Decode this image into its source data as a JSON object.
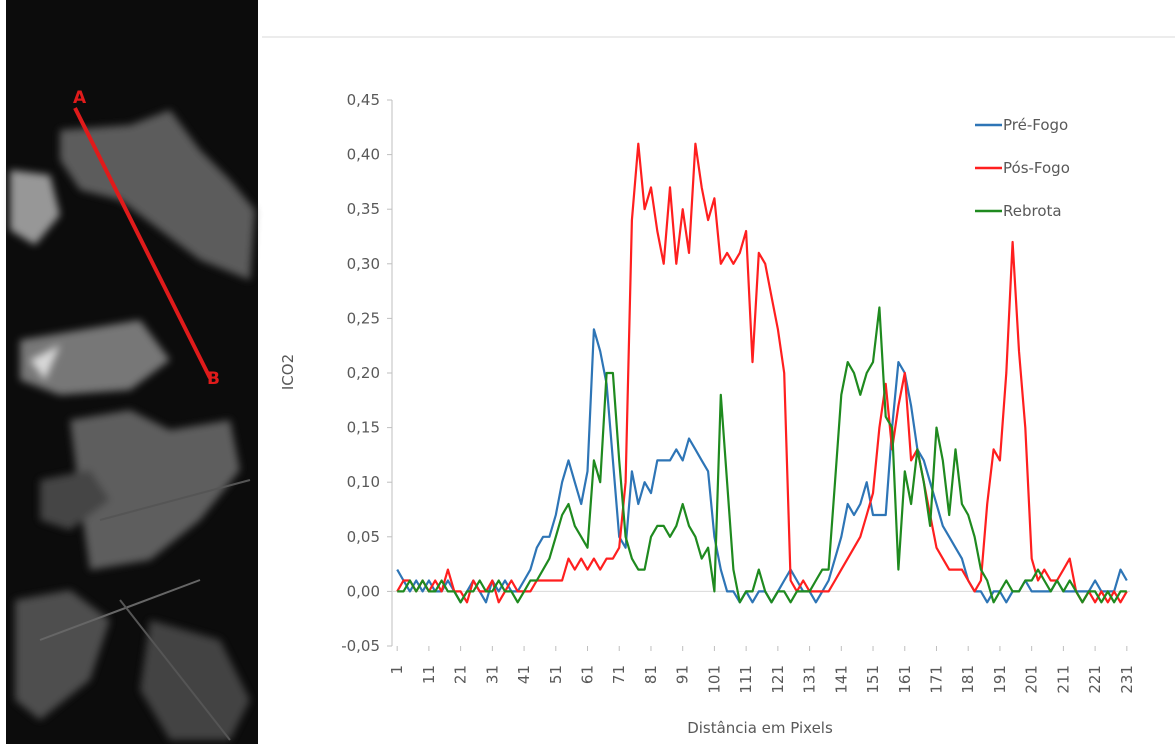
{
  "image": {
    "markers": [
      "A",
      "B"
    ]
  },
  "chart_data": {
    "type": "line",
    "x_label": "Distância em Pixels",
    "y_label": "ICO2",
    "x": [
      1,
      3,
      5,
      7,
      9,
      11,
      13,
      15,
      17,
      19,
      21,
      23,
      25,
      27,
      29,
      31,
      33,
      35,
      37,
      39,
      41,
      43,
      45,
      47,
      49,
      51,
      53,
      55,
      57,
      59,
      61,
      63,
      65,
      67,
      69,
      71,
      73,
      75,
      77,
      79,
      81,
      83,
      85,
      87,
      89,
      91,
      93,
      95,
      97,
      99,
      101,
      103,
      105,
      107,
      109,
      111,
      113,
      115,
      117,
      119,
      121,
      123,
      125,
      127,
      129,
      131,
      133,
      135,
      137,
      139,
      141,
      143,
      145,
      147,
      149,
      151,
      153,
      155,
      157,
      159,
      161,
      163,
      165,
      167,
      169,
      171,
      173,
      175,
      177,
      179,
      181,
      183,
      185,
      187,
      189,
      191,
      193,
      195,
      197,
      199,
      201,
      203,
      205,
      207,
      209,
      211,
      213,
      215,
      217,
      219,
      221,
      223,
      225,
      227,
      229,
      231
    ],
    "series": [
      {
        "name": "Pré-Fogo",
        "color": "#2e75b6",
        "values": [
          0.02,
          0.01,
          0,
          0.01,
          0,
          0.01,
          0,
          0,
          0.01,
          0,
          -0.01,
          0,
          0.01,
          0,
          -0.01,
          0.01,
          0,
          0.01,
          0,
          0,
          0.01,
          0.02,
          0.04,
          0.05,
          0.05,
          0.07,
          0.1,
          0.12,
          0.1,
          0.08,
          0.11,
          0.24,
          0.22,
          0.19,
          0.12,
          0.05,
          0.04,
          0.11,
          0.08,
          0.1,
          0.09,
          0.12,
          0.12,
          0.12,
          0.13,
          0.12,
          0.14,
          0.13,
          0.12,
          0.11,
          0.05,
          0.02,
          0,
          0,
          -0.01,
          0,
          -0.01,
          0,
          0,
          -0.01,
          0,
          0.01,
          0.02,
          0.01,
          0,
          0,
          -0.01,
          0,
          0.01,
          0.03,
          0.05,
          0.08,
          0.07,
          0.08,
          0.1,
          0.07,
          0.07,
          0.07,
          0.15,
          0.21,
          0.2,
          0.17,
          0.13,
          0.12,
          0.1,
          0.08,
          0.06,
          0.05,
          0.04,
          0.03,
          0.01,
          0,
          0,
          -0.01,
          0,
          0,
          -0.01,
          0,
          0,
          0.01,
          0,
          0,
          0,
          0,
          0.01,
          0,
          0,
          0,
          0,
          0,
          0.01,
          0,
          0,
          0,
          0.02,
          0.01
        ]
      },
      {
        "name": "Pós-Fogo",
        "color": "#ff1f1f",
        "values": [
          0,
          0.01,
          0.01,
          0,
          0.01,
          0,
          0.01,
          0,
          0.02,
          0,
          0,
          -0.01,
          0.01,
          0,
          0,
          0.01,
          -0.01,
          0,
          0.01,
          0,
          0,
          0,
          0.01,
          0.01,
          0.01,
          0.01,
          0.01,
          0.03,
          0.02,
          0.03,
          0.02,
          0.03,
          0.02,
          0.03,
          0.03,
          0.04,
          0.1,
          0.34,
          0.41,
          0.35,
          0.37,
          0.33,
          0.3,
          0.37,
          0.3,
          0.35,
          0.31,
          0.41,
          0.37,
          0.34,
          0.36,
          0.3,
          0.31,
          0.3,
          0.31,
          0.33,
          0.21,
          0.31,
          0.3,
          0.27,
          0.24,
          0.2,
          0.01,
          0,
          0.01,
          0,
          0,
          0,
          0,
          0.01,
          0.02,
          0.03,
          0.04,
          0.05,
          0.07,
          0.09,
          0.15,
          0.19,
          0.13,
          0.17,
          0.2,
          0.12,
          0.13,
          0.1,
          0.07,
          0.04,
          0.03,
          0.02,
          0.02,
          0.02,
          0.01,
          0,
          0.01,
          0.08,
          0.13,
          0.12,
          0.2,
          0.32,
          0.22,
          0.15,
          0.03,
          0.01,
          0.02,
          0.01,
          0.01,
          0.02,
          0.03,
          0,
          -0.01,
          0,
          -0.01,
          0,
          -0.01,
          0,
          -0.01,
          0
        ]
      },
      {
        "name": "Rebrota",
        "color": "#1f8a1f",
        "values": [
          0,
          0,
          0.01,
          0,
          0.01,
          0,
          0,
          0.01,
          0,
          0,
          -0.01,
          0,
          0,
          0.01,
          0,
          0,
          0.01,
          0,
          0,
          -0.01,
          0,
          0.01,
          0.01,
          0.02,
          0.03,
          0.05,
          0.07,
          0.08,
          0.06,
          0.05,
          0.04,
          0.12,
          0.1,
          0.2,
          0.2,
          0.12,
          0.05,
          0.03,
          0.02,
          0.02,
          0.05,
          0.06,
          0.06,
          0.05,
          0.06,
          0.08,
          0.06,
          0.05,
          0.03,
          0.04,
          0,
          0.18,
          0.1,
          0.02,
          -0.01,
          0,
          0,
          0.02,
          0,
          -0.01,
          0,
          0,
          -0.01,
          0,
          0,
          0,
          0.01,
          0.02,
          0.02,
          0.1,
          0.18,
          0.21,
          0.2,
          0.18,
          0.2,
          0.21,
          0.26,
          0.16,
          0.15,
          0.02,
          0.11,
          0.08,
          0.13,
          0.1,
          0.06,
          0.15,
          0.12,
          0.07,
          0.13,
          0.08,
          0.07,
          0.05,
          0.02,
          0.01,
          -0.01,
          0,
          0.01,
          0,
          0,
          0.01,
          0.01,
          0.02,
          0.01,
          0,
          0.01,
          0,
          0.01,
          0,
          -0.01,
          0,
          0,
          -0.01,
          0,
          -0.01,
          0,
          0
        ]
      }
    ],
    "xlim": [
      0,
      232
    ],
    "xticks": [
      1,
      11,
      21,
      31,
      41,
      51,
      61,
      71,
      81,
      91,
      101,
      111,
      121,
      131,
      141,
      151,
      161,
      171,
      181,
      191,
      201,
      211,
      221,
      231
    ],
    "ylim": [
      -0.05,
      0.45
    ],
    "yticks": [
      {
        "value": -0.05,
        "label": "-0,05"
      },
      {
        "value": 0,
        "label": "0,00"
      },
      {
        "value": 0.05,
        "label": "0,05"
      },
      {
        "value": 0.1,
        "label": "0,10"
      },
      {
        "value": 0.15,
        "label": "0,15"
      },
      {
        "value": 0.2,
        "label": "0,20"
      },
      {
        "value": 0.25,
        "label": "0,25"
      },
      {
        "value": 0.3,
        "label": "0,30"
      },
      {
        "value": 0.35,
        "label": "0,35"
      },
      {
        "value": 0.4,
        "label": "0,40"
      },
      {
        "value": 0.45,
        "label": "0,45"
      }
    ],
    "zero_line": true,
    "legend": "top-right"
  }
}
